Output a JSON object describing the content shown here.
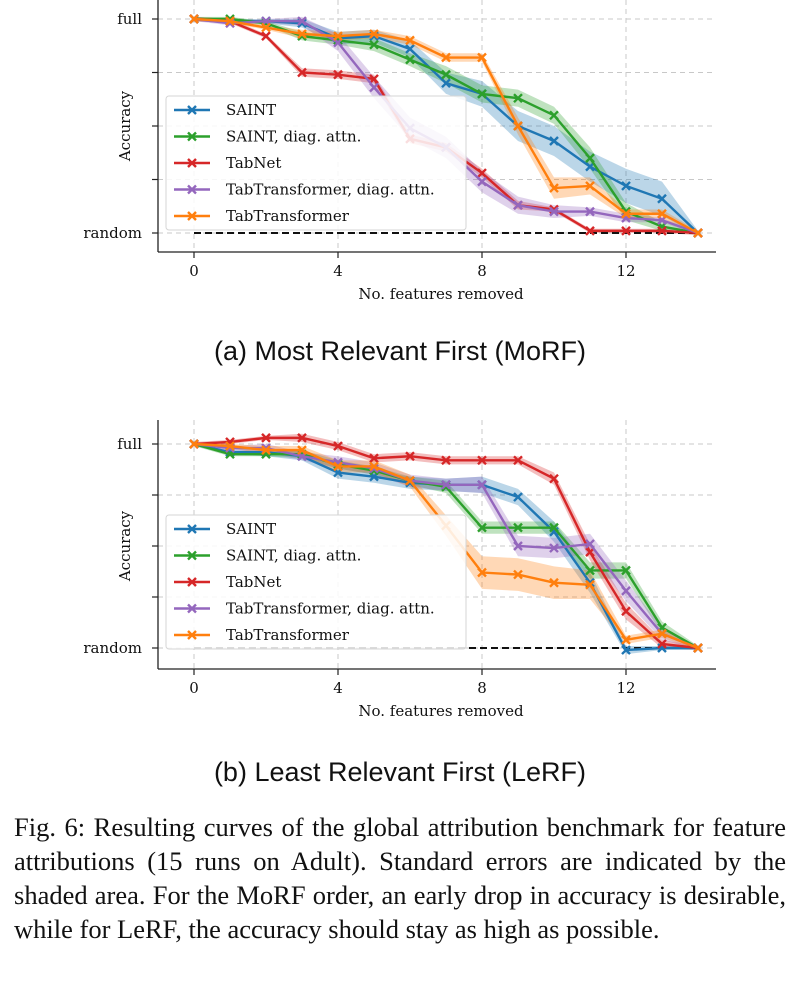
{
  "figure": {
    "subplot_labels": [
      "(a) Most Relevant First (MoRF)",
      "(b) Least Relevant First (LeRF)"
    ],
    "caption": "Fig. 6: Resulting curves of the global attribution benchmark for feature attributions (15 runs on Adult). Standard errors are indicated by the shaded area. For the MoRF order, an early drop in accuracy is desirable, while for LeRF, the accuracy should stay as high as possible."
  },
  "colors": {
    "SAINT": "#1f77b4",
    "SAINT, diag. attn.": "#2ca02c",
    "TabNet": "#d62728",
    "TabTransformer, diag. attn.": "#9467bd",
    "TabTransformer": "#ff7f0e",
    "random_line": "#111111",
    "grid": "#c8c8c8"
  },
  "chart_data": [
    {
      "type": "line",
      "title": "",
      "xlabel": "No. features removed",
      "ylabel": "Accuracy",
      "xticks": [
        0,
        4,
        8,
        12
      ],
      "ytick_labels": {
        "full": 1.0,
        "random": 0.0
      },
      "xlim": [
        -1,
        14.5
      ],
      "ylim": [
        -0.04,
        1.04
      ],
      "legend_position": "center-left",
      "grid": true,
      "random_baseline": 0.0,
      "x": [
        0,
        1,
        2,
        3,
        4,
        5,
        6,
        7,
        8,
        9,
        10,
        11,
        12,
        13,
        14
      ],
      "series": [
        {
          "name": "SAINT",
          "values": [
            1.0,
            0.99,
            0.99,
            0.98,
            0.91,
            0.92,
            0.86,
            0.7,
            0.65,
            0.5,
            0.43,
            0.31,
            0.22,
            0.16,
            0.0
          ],
          "err": [
            0.01,
            0.01,
            0.01,
            0.02,
            0.03,
            0.03,
            0.04,
            0.05,
            0.06,
            0.07,
            0.07,
            0.07,
            0.08,
            0.08,
            0.01
          ]
        },
        {
          "name": "SAINT, diag. attn.",
          "values": [
            1.0,
            1.0,
            0.98,
            0.92,
            0.9,
            0.88,
            0.81,
            0.74,
            0.65,
            0.63,
            0.55,
            0.35,
            0.1,
            0.03,
            0.0
          ],
          "err": [
            0.01,
            0.01,
            0.01,
            0.02,
            0.02,
            0.03,
            0.03,
            0.04,
            0.04,
            0.04,
            0.04,
            0.05,
            0.04,
            0.02,
            0.01
          ]
        },
        {
          "name": "TabNet",
          "values": [
            1.0,
            0.99,
            0.92,
            0.75,
            0.74,
            0.72,
            0.44,
            0.4,
            0.28,
            0.13,
            0.11,
            0.01,
            0.01,
            0.01,
            0.0
          ],
          "err": [
            0.01,
            0.01,
            0.01,
            0.02,
            0.02,
            0.02,
            0.02,
            0.02,
            0.02,
            0.02,
            0.01,
            0.01,
            0.01,
            0.01,
            0.01
          ]
        },
        {
          "name": "TabTransformer, diag. attn.",
          "values": [
            1.0,
            0.98,
            0.99,
            0.99,
            0.89,
            0.68,
            0.49,
            0.4,
            0.24,
            0.13,
            0.1,
            0.1,
            0.07,
            0.06,
            0.0
          ],
          "err": [
            0.01,
            0.01,
            0.01,
            0.02,
            0.04,
            0.05,
            0.05,
            0.05,
            0.05,
            0.04,
            0.03,
            0.02,
            0.02,
            0.01,
            0.01
          ]
        },
        {
          "name": "TabTransformer",
          "values": [
            1.0,
            0.99,
            0.96,
            0.93,
            0.92,
            0.93,
            0.9,
            0.82,
            0.82,
            0.5,
            0.21,
            0.22,
            0.09,
            0.09,
            0.0
          ],
          "err": [
            0.01,
            0.01,
            0.01,
            0.02,
            0.02,
            0.02,
            0.02,
            0.02,
            0.02,
            0.04,
            0.05,
            0.04,
            0.02,
            0.02,
            0.01
          ]
        }
      ]
    },
    {
      "type": "line",
      "title": "",
      "xlabel": "No. features removed",
      "ylabel": "Accuracy",
      "xticks": [
        0,
        4,
        8,
        12
      ],
      "ytick_labels": {
        "full": 1.0,
        "random": 0.0
      },
      "xlim": [
        -1,
        14.5
      ],
      "ylim": [
        -0.04,
        1.04
      ],
      "legend_position": "center-left",
      "grid": true,
      "random_baseline": 0.0,
      "x": [
        0,
        1,
        2,
        3,
        4,
        5,
        6,
        7,
        8,
        9,
        10,
        11,
        12,
        13,
        14
      ],
      "series": [
        {
          "name": "SAINT",
          "values": [
            1.0,
            0.96,
            0.96,
            0.94,
            0.86,
            0.84,
            0.81,
            0.8,
            0.8,
            0.74,
            0.57,
            0.32,
            -0.01,
            0.0,
            0.0
          ],
          "err": [
            0.01,
            0.01,
            0.02,
            0.02,
            0.03,
            0.03,
            0.03,
            0.03,
            0.04,
            0.04,
            0.05,
            0.05,
            0.02,
            0.01,
            0.01
          ]
        },
        {
          "name": "SAINT, diag. attn.",
          "values": [
            1.0,
            0.95,
            0.95,
            0.95,
            0.9,
            0.87,
            0.82,
            0.79,
            0.59,
            0.59,
            0.59,
            0.38,
            0.38,
            0.1,
            0.0
          ],
          "err": [
            0.01,
            0.01,
            0.01,
            0.02,
            0.02,
            0.02,
            0.02,
            0.03,
            0.03,
            0.03,
            0.03,
            0.04,
            0.04,
            0.03,
            0.01
          ]
        },
        {
          "name": "TabNet",
          "values": [
            1.0,
            1.01,
            1.03,
            1.03,
            0.99,
            0.93,
            0.94,
            0.92,
            0.92,
            0.92,
            0.83,
            0.47,
            0.18,
            0.02,
            0.0
          ],
          "err": [
            0.01,
            0.01,
            0.01,
            0.02,
            0.02,
            0.02,
            0.02,
            0.02,
            0.02,
            0.02,
            0.03,
            0.04,
            0.04,
            0.02,
            0.01
          ]
        },
        {
          "name": "TabTransformer, diag. attn.",
          "values": [
            1.0,
            0.98,
            0.98,
            0.94,
            0.91,
            0.88,
            0.82,
            0.8,
            0.8,
            0.5,
            0.49,
            0.51,
            0.28,
            0.07,
            0.0
          ],
          "err": [
            0.01,
            0.01,
            0.02,
            0.02,
            0.03,
            0.03,
            0.03,
            0.03,
            0.04,
            0.05,
            0.05,
            0.05,
            0.05,
            0.03,
            0.01
          ]
        },
        {
          "name": "TabTransformer",
          "values": [
            1.0,
            0.99,
            0.97,
            0.97,
            0.89,
            0.89,
            0.82,
            0.6,
            0.37,
            0.36,
            0.32,
            0.31,
            0.04,
            0.07,
            0.0
          ],
          "err": [
            0.01,
            0.01,
            0.02,
            0.02,
            0.03,
            0.03,
            0.03,
            0.05,
            0.08,
            0.08,
            0.08,
            0.07,
            0.02,
            0.02,
            0.01
          ]
        }
      ]
    }
  ]
}
